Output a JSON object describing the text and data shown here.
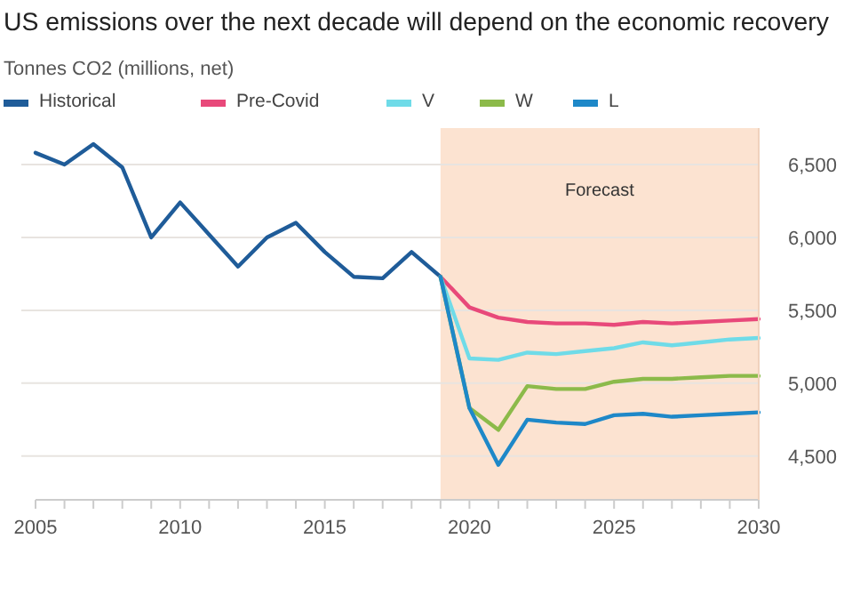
{
  "chart_data": {
    "type": "line",
    "title": "US emissions over the next decade will depend on the economic recovery",
    "subtitle": "Tonnes CO2 (millions, net)",
    "series": [
      {
        "name": "Historical",
        "color": "#1f5c99",
        "x": [
          2005,
          2006,
          2007,
          2008,
          2009,
          2010,
          2011,
          2012,
          2013,
          2014,
          2015,
          2016,
          2017,
          2018,
          2019
        ],
        "values": [
          6580,
          6500,
          6640,
          6480,
          6000,
          6240,
          6020,
          5800,
          6000,
          6100,
          5900,
          5730,
          5720,
          5900,
          5730
        ]
      },
      {
        "name": "Pre-Covid",
        "color": "#e8497a",
        "x": [
          2019,
          2020,
          2021,
          2022,
          2023,
          2024,
          2025,
          2026,
          2027,
          2028,
          2029,
          2030
        ],
        "values": [
          5730,
          5520,
          5450,
          5420,
          5410,
          5410,
          5400,
          5420,
          5410,
          5420,
          5430,
          5440
        ]
      },
      {
        "name": "V",
        "color": "#6fdbe8",
        "x": [
          2019,
          2020,
          2021,
          2022,
          2023,
          2024,
          2025,
          2026,
          2027,
          2028,
          2029,
          2030
        ],
        "values": [
          5730,
          5170,
          5160,
          5210,
          5200,
          5220,
          5240,
          5280,
          5260,
          5280,
          5300,
          5310
        ]
      },
      {
        "name": "W",
        "color": "#8cba4a",
        "x": [
          2019,
          2020,
          2021,
          2022,
          2023,
          2024,
          2025,
          2026,
          2027,
          2028,
          2029,
          2030
        ],
        "values": [
          5730,
          4830,
          4680,
          4980,
          4960,
          4960,
          5010,
          5030,
          5030,
          5040,
          5050,
          5050
        ]
      },
      {
        "name": "L",
        "color": "#1e88c8",
        "x": [
          2019,
          2020,
          2021,
          2022,
          2023,
          2024,
          2025,
          2026,
          2027,
          2028,
          2029,
          2030
        ],
        "values": [
          5730,
          4830,
          4440,
          4750,
          4730,
          4720,
          4780,
          4790,
          4770,
          4780,
          4790,
          4800
        ]
      }
    ],
    "xlim": [
      2005,
      2030
    ],
    "xticks": [
      2005,
      {
        "value": 2006,
        "label": null
      },
      {
        "value": 2007,
        "label": null
      },
      {
        "value": 2008,
        "label": null
      },
      {
        "value": 2009,
        "label": null
      },
      2010,
      {
        "value": 2011,
        "label": null
      },
      {
        "value": 2012,
        "label": null
      },
      {
        "value": 2013,
        "label": null
      },
      {
        "value": 2014,
        "label": null
      },
      2015,
      {
        "value": 2016,
        "label": null
      },
      {
        "value": 2017,
        "label": null
      },
      {
        "value": 2018,
        "label": null
      },
      {
        "value": 2019,
        "label": null
      },
      2020,
      {
        "value": 2021,
        "label": null
      },
      {
        "value": 2022,
        "label": null
      },
      {
        "value": 2023,
        "label": null
      },
      {
        "value": 2024,
        "label": null
      },
      2025,
      {
        "value": 2026,
        "label": null
      },
      {
        "value": 2027,
        "label": null
      },
      {
        "value": 2028,
        "label": null
      },
      {
        "value": 2029,
        "label": null
      },
      2030
    ],
    "ylim": [
      4200,
      6750
    ],
    "yticks": [
      {
        "value": 4500,
        "label": "4,500"
      },
      {
        "value": 5000,
        "label": "5,000"
      },
      {
        "value": 5500,
        "label": "5,500"
      },
      {
        "value": 6000,
        "label": "6,000"
      },
      {
        "value": 6500,
        "label": "6,500"
      }
    ],
    "bands": [
      {
        "axis": "x",
        "from": 2019,
        "to": 2030,
        "label": "Forecast",
        "color": "#fce3d1"
      }
    ],
    "grid": "y",
    "legend": "top left",
    "marker": "none",
    "line_style": "solid"
  }
}
